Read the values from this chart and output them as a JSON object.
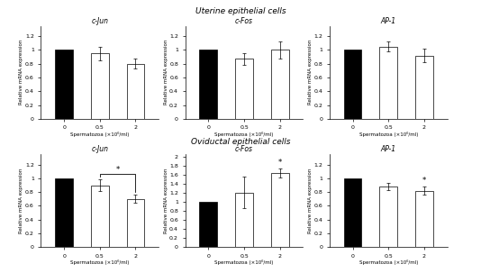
{
  "title_top": "Uterine epithelial cells",
  "title_bottom": "Oviductal epithelial cells",
  "title_fontsize": 6.5,
  "subtitle_fontsize": 5.5,
  "tick_fontsize": 4.5,
  "label_fontsize": 4.0,
  "subtitles": [
    "c-Jun",
    "c-Fos",
    "AP-1"
  ],
  "xlabel": "Spermatozoa (×10⁶/ml)",
  "ylabel": "Relative mRNA expression",
  "xtick_labels": [
    "0",
    "0.5",
    "2"
  ],
  "uterine": {
    "c_jun": {
      "values": [
        1.0,
        0.95,
        0.8
      ],
      "errors": [
        0.0,
        0.1,
        0.07
      ]
    },
    "c_fos": {
      "values": [
        1.0,
        0.87,
        1.0
      ],
      "errors": [
        0.0,
        0.08,
        0.12
      ]
    },
    "ap1": {
      "values": [
        1.0,
        1.05,
        0.92
      ],
      "errors": [
        0.0,
        0.07,
        0.1
      ]
    }
  },
  "oviductal": {
    "c_jun": {
      "values": [
        1.0,
        0.9,
        0.7
      ],
      "errors": [
        0.0,
        0.08,
        0.06
      ]
    },
    "c_fos": {
      "values": [
        1.0,
        1.2,
        1.63
      ],
      "errors": [
        0.0,
        0.35,
        0.1
      ]
    },
    "ap1": {
      "values": [
        1.0,
        0.88,
        0.82
      ],
      "errors": [
        0.0,
        0.05,
        0.06
      ]
    }
  },
  "bar_color_first": "#000000",
  "bar_color_rest": "#ffffff",
  "bar_edgecolor": "#000000",
  "bar_linewidth": 0.5,
  "bar_width": 0.5,
  "ylim_standard": [
    0,
    1.35
  ],
  "ylim_cfos_ovid": [
    0,
    2.05
  ],
  "yticks_standard": [
    0,
    0.2,
    0.4,
    0.6,
    0.8,
    1.0,
    1.2
  ],
  "yticks_cfos_ovid": [
    0,
    0.2,
    0.4,
    0.6,
    0.8,
    1.0,
    1.2,
    1.4,
    1.6,
    1.8,
    2.0
  ],
  "background_color": "#ffffff",
  "errorbar_linewidth": 0.5,
  "errorbar_capsize": 1.5,
  "errorbar_capthick": 0.5
}
